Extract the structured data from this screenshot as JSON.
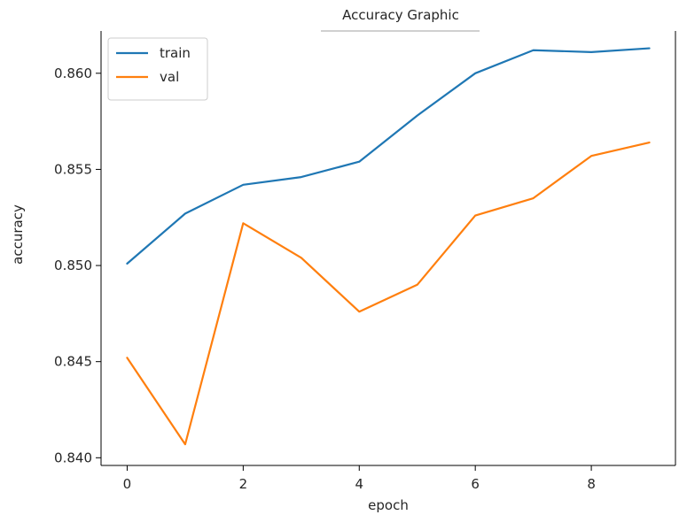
{
  "chart_data": {
    "type": "line",
    "title": "Accuracy Graphic",
    "xlabel": "epoch",
    "ylabel": "accuracy",
    "x": [
      0,
      1,
      2,
      3,
      4,
      5,
      6,
      7,
      8,
      9
    ],
    "xlim": [
      -0.45,
      9.45
    ],
    "ylim": [
      0.8396,
      0.8622
    ],
    "xticks": [
      0,
      2,
      4,
      6,
      8
    ],
    "yticks": [
      0.84,
      0.845,
      0.85,
      0.855,
      0.86
    ],
    "xtick_labels": [
      "0",
      "2",
      "4",
      "6",
      "8"
    ],
    "ytick_labels": [
      "0.840",
      "0.845",
      "0.850",
      "0.855",
      "0.860"
    ],
    "grid": false,
    "legend_position": "top-left",
    "series": [
      {
        "name": "train",
        "color": "#1f77b4",
        "values": [
          0.8501,
          0.8527,
          0.8542,
          0.8546,
          0.8554,
          0.8578,
          0.86,
          0.8612,
          0.8611,
          0.8613
        ]
      },
      {
        "name": "val",
        "color": "#ff7f0e",
        "values": [
          0.8452,
          0.8407,
          0.8522,
          0.8504,
          0.8476,
          0.849,
          0.8526,
          0.8535,
          0.8557,
          0.8564
        ]
      }
    ]
  }
}
